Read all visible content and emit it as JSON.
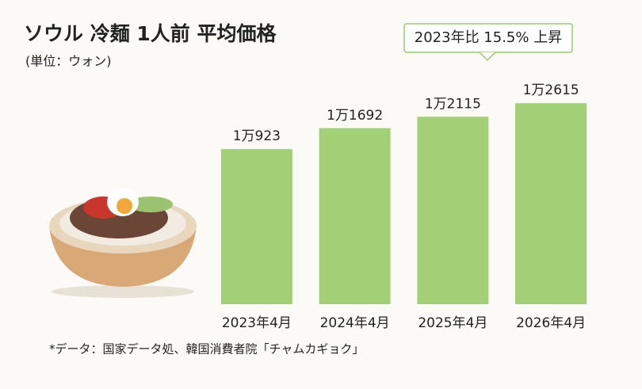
{
  "chart_data": {
    "type": "bar",
    "title": "ソウル 冷麺 1人前 平均価格",
    "subtitle": "(単位：ウォン)",
    "annotation": "2023年比 15.5% 上昇",
    "source": "*データ：国家データ処、韓国消費者院「チャムカギョク」",
    "categories": [
      "2023年4月",
      "2024年4月",
      "2025年4月",
      "2026年4月"
    ],
    "values": [
      10923,
      11692,
      12115,
      12615
    ],
    "value_labels": [
      "1万923",
      "1万1692",
      "1万2115",
      "1万2615"
    ],
    "color": "#a3d077",
    "ylim": [
      5200,
      13000
    ]
  }
}
